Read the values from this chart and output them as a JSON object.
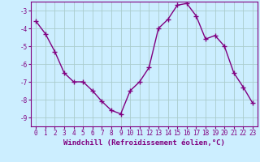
{
  "x": [
    0,
    1,
    2,
    3,
    4,
    5,
    6,
    7,
    8,
    9,
    10,
    11,
    12,
    13,
    14,
    15,
    16,
    17,
    18,
    19,
    20,
    21,
    22,
    23
  ],
  "y": [
    -3.6,
    -4.3,
    -5.3,
    -6.5,
    -7.0,
    -7.0,
    -7.5,
    -8.1,
    -8.6,
    -8.8,
    -7.5,
    -7.0,
    -6.2,
    -4.0,
    -3.5,
    -2.7,
    -2.6,
    -3.3,
    -4.6,
    -4.4,
    -5.0,
    -6.5,
    -7.3,
    -8.2
  ],
  "line_color": "#800080",
  "marker": "+",
  "markersize": 4,
  "linewidth": 1.0,
  "xlabel": "Windchill (Refroidissement éolien,°C)",
  "xlabel_fontsize": 6.5,
  "ylabel": "",
  "title": "",
  "xlim_min": -0.5,
  "xlim_max": 23.5,
  "ylim": [
    -9.5,
    -2.5
  ],
  "yticks": [
    -9,
    -8,
    -7,
    -6,
    -5,
    -4,
    -3
  ],
  "xticks": [
    0,
    1,
    2,
    3,
    4,
    5,
    6,
    7,
    8,
    9,
    10,
    11,
    12,
    13,
    14,
    15,
    16,
    17,
    18,
    19,
    20,
    21,
    22,
    23
  ],
  "background_color": "#cceeff",
  "grid_color": "#aacccc",
  "tick_color": "#800080",
  "tick_fontsize": 5.5,
  "spine_color": "#800080"
}
